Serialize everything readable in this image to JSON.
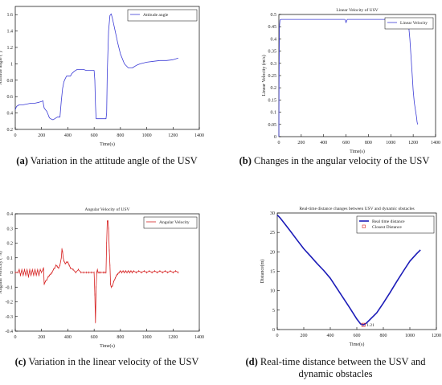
{
  "captions": [
    {
      "letter": "(a)",
      "text": " Variation in the attitude angle of the USV"
    },
    {
      "letter": "(b)",
      "text": " Changes in the angular velocity of the USV"
    },
    {
      "letter": "(c)",
      "text": " Variation in the linear velocity of the USV"
    },
    {
      "letter": "(d)",
      "text": " Real-time distance between the USV and dynamic obstacles"
    }
  ],
  "chart_data": [
    {
      "id": "a",
      "type": "line",
      "title": "",
      "xlabel": "Time(s)",
      "ylabel": "Attitude angle (°)",
      "xlim": [
        0,
        1400
      ],
      "ylim": [
        0.2,
        1.7
      ],
      "xticks": [
        0,
        200,
        400,
        600,
        800,
        1000,
        1200,
        1400
      ],
      "yticks": [
        0.2,
        0.4,
        0.6,
        0.8,
        1,
        1.2,
        1.4,
        1.6
      ],
      "grid": false,
      "legend": {
        "position": "top-right",
        "entries": [
          "Attitude angle"
        ]
      },
      "series": [
        {
          "name": "Attitude angle",
          "color": "#3b3bd6",
          "x": [
            0,
            10,
            30,
            60,
            90,
            120,
            150,
            180,
            200,
            210,
            215,
            220,
            230,
            240,
            250,
            260,
            270,
            280,
            290,
            300,
            310,
            320,
            340,
            350,
            360,
            370,
            380,
            390,
            400,
            420,
            430,
            450,
            470,
            490,
            500,
            520,
            540,
            560,
            580,
            600,
            605,
            610,
            615,
            625,
            650,
            680,
            690,
            695,
            700,
            710,
            720,
            730,
            740,
            760,
            780,
            800,
            830,
            860,
            890,
            900,
            920,
            950,
            1000,
            1050,
            1100,
            1150,
            1200,
            1220,
            1240
          ],
          "y": [
            0.44,
            0.48,
            0.5,
            0.5,
            0.51,
            0.52,
            0.52,
            0.53,
            0.54,
            0.55,
            0.5,
            0.46,
            0.44,
            0.42,
            0.38,
            0.34,
            0.33,
            0.32,
            0.32,
            0.33,
            0.34,
            0.35,
            0.35,
            0.55,
            0.7,
            0.78,
            0.82,
            0.85,
            0.85,
            0.85,
            0.88,
            0.91,
            0.93,
            0.93,
            0.93,
            0.93,
            0.92,
            0.92,
            0.92,
            0.92,
            0.8,
            0.5,
            0.33,
            0.33,
            0.33,
            0.33,
            0.33,
            0.4,
            0.9,
            1.4,
            1.59,
            1.61,
            1.55,
            1.4,
            1.25,
            1.12,
            1.0,
            0.95,
            0.95,
            0.96,
            0.98,
            1.0,
            1.02,
            1.03,
            1.04,
            1.04,
            1.05,
            1.06,
            1.07
          ]
        }
      ]
    },
    {
      "id": "b",
      "type": "line",
      "title": "Linear Velocity of USV",
      "xlabel": "Time(s)",
      "ylabel": "Linear Velocity (m/s)",
      "xlim": [
        0,
        1400
      ],
      "ylim": [
        0,
        0.5
      ],
      "xticks": [
        0,
        200,
        400,
        600,
        800,
        1000,
        1200,
        1400
      ],
      "yticks": [
        0,
        0.05,
        0.1,
        0.15,
        0.2,
        0.25,
        0.3,
        0.35,
        0.4,
        0.45,
        0.5
      ],
      "grid": false,
      "legend": {
        "position": "top-right",
        "entries": [
          "Linear Velocity"
        ]
      },
      "series": [
        {
          "name": "Linear Velocity",
          "color": "#3b3bd6",
          "x": [
            0,
            2,
            5,
            10,
            20,
            200,
            400,
            590,
            595,
            600,
            605,
            612,
            620,
            800,
            1000,
            1150,
            1160,
            1170,
            1180,
            1190,
            1200,
            1210,
            1220,
            1230,
            1235,
            1240
          ],
          "y": [
            0.0,
            0.25,
            0.45,
            0.477,
            0.48,
            0.48,
            0.48,
            0.48,
            0.474,
            0.466,
            0.474,
            0.48,
            0.48,
            0.48,
            0.48,
            0.48,
            0.45,
            0.4,
            0.33,
            0.26,
            0.19,
            0.14,
            0.11,
            0.08,
            0.06,
            0.05
          ]
        }
      ]
    },
    {
      "id": "c",
      "type": "line",
      "title": "Angular Velocity of USV",
      "xlabel": "Time(s)",
      "ylabel": "Angular Velocity (°/s)",
      "xlim": [
        0,
        1400
      ],
      "ylim": [
        -0.4,
        0.4
      ],
      "xticks": [
        0,
        200,
        400,
        600,
        800,
        1000,
        1200,
        1400
      ],
      "yticks": [
        -0.4,
        -0.3,
        -0.2,
        -0.1,
        0,
        0.1,
        0.2,
        0.3,
        0.4
      ],
      "grid": false,
      "legend": {
        "position": "top-right",
        "entries": [
          "Angular Velocity"
        ]
      },
      "series": [
        {
          "name": "Angular Velocity",
          "color": "#d62020",
          "x": [
            0,
            20,
            30,
            40,
            50,
            60,
            70,
            80,
            90,
            100,
            110,
            120,
            130,
            140,
            150,
            160,
            170,
            180,
            190,
            200,
            210,
            215,
            220,
            230,
            240,
            250,
            260,
            270,
            280,
            290,
            300,
            310,
            320,
            330,
            340,
            350,
            355,
            360,
            365,
            370,
            380,
            390,
            400,
            410,
            420,
            440,
            460,
            480,
            500,
            520,
            540,
            560,
            580,
            600,
            605,
            610,
            615,
            620,
            625,
            630,
            640,
            650,
            670,
            680,
            690,
            695,
            700,
            705,
            710,
            715,
            720,
            725,
            730,
            740,
            750,
            760,
            770,
            780,
            790,
            800,
            810,
            820,
            830,
            840,
            850,
            860,
            870,
            880,
            890,
            900,
            920,
            940,
            960,
            980,
            1000,
            1020,
            1040,
            1060,
            1080,
            1100,
            1120,
            1140,
            1160,
            1180,
            1200,
            1220,
            1240
          ],
          "y": [
            0.0,
            0.0,
            0.02,
            -0.02,
            0.02,
            -0.02,
            0.02,
            -0.02,
            0.02,
            -0.03,
            0.02,
            -0.02,
            0.02,
            -0.02,
            0.02,
            -0.02,
            0.02,
            -0.02,
            0.02,
            0.0,
            0.02,
            0.03,
            -0.08,
            -0.06,
            -0.05,
            -0.03,
            -0.02,
            -0.01,
            0.0,
            0.02,
            0.03,
            0.05,
            0.04,
            0.03,
            0.05,
            0.1,
            0.16,
            0.14,
            0.1,
            0.08,
            0.06,
            0.07,
            0.07,
            0.05,
            0.03,
            0.02,
            0.0,
            0.02,
            0.0,
            0.0,
            0.0,
            0.0,
            0.0,
            0.0,
            -0.15,
            -0.34,
            -0.1,
            0.0,
            0.02,
            0.0,
            0.0,
            0.0,
            0.0,
            0.0,
            0.0,
            0.2,
            0.35,
            0.35,
            0.3,
            0.15,
            0.05,
            -0.08,
            -0.1,
            -0.09,
            -0.06,
            -0.04,
            -0.02,
            -0.01,
            0.0,
            0.01,
            0.0,
            0.01,
            0.0,
            0.01,
            0.0,
            0.01,
            0.0,
            0.01,
            0.0,
            0.01,
            0.0,
            0.01,
            0.0,
            0.01,
            0.0,
            0.01,
            0.0,
            0.01,
            0.0,
            0.01,
            0.0,
            0.01,
            0.0,
            0.01,
            0.0,
            0.01,
            0.0
          ]
        }
      ]
    },
    {
      "id": "d",
      "type": "line",
      "title": "Real-time distance changes between USV and dynamic obstacles",
      "xlabel": "Time(s)",
      "ylabel": "Distance(m)",
      "xlim": [
        0,
        1200
      ],
      "ylim": [
        0,
        30
      ],
      "xticks": [
        0,
        200,
        400,
        600,
        800,
        1000,
        1200
      ],
      "yticks": [
        0,
        5,
        10,
        15,
        20,
        25,
        30
      ],
      "grid": false,
      "legend": {
        "position": "top-right",
        "entries": [
          "Real time distance",
          "Closest Distance"
        ]
      },
      "series": [
        {
          "name": "Real time distance",
          "color": "#1c1cb8",
          "x": [
            0,
            20,
            50,
            100,
            150,
            200,
            250,
            300,
            350,
            400,
            450,
            500,
            550,
            600,
            630,
            650,
            670,
            700,
            750,
            800,
            850,
            900,
            950,
            1000,
            1050,
            1080
          ],
          "y": [
            29.5,
            28.8,
            27.5,
            25.3,
            23.0,
            20.8,
            18.9,
            17.0,
            15.2,
            13.2,
            10.6,
            8.0,
            5.4,
            2.7,
            1.4,
            1.21,
            1.6,
            2.6,
            4.3,
            6.8,
            9.5,
            12.3,
            15.0,
            17.6,
            19.5,
            20.5
          ]
        },
        {
          "name": "Closest Distance",
          "type": "scatter",
          "marker": "square-open",
          "color": "#d62020",
          "x": [
            650
          ],
          "y": [
            1.21
          ]
        }
      ],
      "annotations": [
        {
          "text": "1.21",
          "x": 650,
          "y": 1.21
        }
      ]
    }
  ]
}
